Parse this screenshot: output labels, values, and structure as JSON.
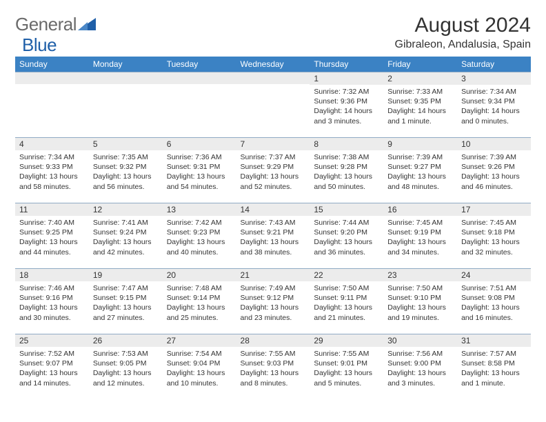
{
  "logo": {
    "part1": "General",
    "part2": "Blue"
  },
  "title": "August 2024",
  "location": "Gibraleon, Andalusia, Spain",
  "colors": {
    "header_bg": "#3b82c4",
    "header_text": "#ffffff",
    "daynum_bg": "#ececec",
    "border": "#8faac4",
    "logo_gray": "#6a6a6a",
    "logo_blue": "#1f5fa8"
  },
  "weekdays": [
    "Sunday",
    "Monday",
    "Tuesday",
    "Wednesday",
    "Thursday",
    "Friday",
    "Saturday"
  ],
  "grid": [
    [
      {
        "n": "",
        "sr": "",
        "ss": "",
        "dl": ""
      },
      {
        "n": "",
        "sr": "",
        "ss": "",
        "dl": ""
      },
      {
        "n": "",
        "sr": "",
        "ss": "",
        "dl": ""
      },
      {
        "n": "",
        "sr": "",
        "ss": "",
        "dl": ""
      },
      {
        "n": "1",
        "sr": "Sunrise: 7:32 AM",
        "ss": "Sunset: 9:36 PM",
        "dl": "Daylight: 14 hours and 3 minutes."
      },
      {
        "n": "2",
        "sr": "Sunrise: 7:33 AM",
        "ss": "Sunset: 9:35 PM",
        "dl": "Daylight: 14 hours and 1 minute."
      },
      {
        "n": "3",
        "sr": "Sunrise: 7:34 AM",
        "ss": "Sunset: 9:34 PM",
        "dl": "Daylight: 14 hours and 0 minutes."
      }
    ],
    [
      {
        "n": "4",
        "sr": "Sunrise: 7:34 AM",
        "ss": "Sunset: 9:33 PM",
        "dl": "Daylight: 13 hours and 58 minutes."
      },
      {
        "n": "5",
        "sr": "Sunrise: 7:35 AM",
        "ss": "Sunset: 9:32 PM",
        "dl": "Daylight: 13 hours and 56 minutes."
      },
      {
        "n": "6",
        "sr": "Sunrise: 7:36 AM",
        "ss": "Sunset: 9:31 PM",
        "dl": "Daylight: 13 hours and 54 minutes."
      },
      {
        "n": "7",
        "sr": "Sunrise: 7:37 AM",
        "ss": "Sunset: 9:29 PM",
        "dl": "Daylight: 13 hours and 52 minutes."
      },
      {
        "n": "8",
        "sr": "Sunrise: 7:38 AM",
        "ss": "Sunset: 9:28 PM",
        "dl": "Daylight: 13 hours and 50 minutes."
      },
      {
        "n": "9",
        "sr": "Sunrise: 7:39 AM",
        "ss": "Sunset: 9:27 PM",
        "dl": "Daylight: 13 hours and 48 minutes."
      },
      {
        "n": "10",
        "sr": "Sunrise: 7:39 AM",
        "ss": "Sunset: 9:26 PM",
        "dl": "Daylight: 13 hours and 46 minutes."
      }
    ],
    [
      {
        "n": "11",
        "sr": "Sunrise: 7:40 AM",
        "ss": "Sunset: 9:25 PM",
        "dl": "Daylight: 13 hours and 44 minutes."
      },
      {
        "n": "12",
        "sr": "Sunrise: 7:41 AM",
        "ss": "Sunset: 9:24 PM",
        "dl": "Daylight: 13 hours and 42 minutes."
      },
      {
        "n": "13",
        "sr": "Sunrise: 7:42 AM",
        "ss": "Sunset: 9:23 PM",
        "dl": "Daylight: 13 hours and 40 minutes."
      },
      {
        "n": "14",
        "sr": "Sunrise: 7:43 AM",
        "ss": "Sunset: 9:21 PM",
        "dl": "Daylight: 13 hours and 38 minutes."
      },
      {
        "n": "15",
        "sr": "Sunrise: 7:44 AM",
        "ss": "Sunset: 9:20 PM",
        "dl": "Daylight: 13 hours and 36 minutes."
      },
      {
        "n": "16",
        "sr": "Sunrise: 7:45 AM",
        "ss": "Sunset: 9:19 PM",
        "dl": "Daylight: 13 hours and 34 minutes."
      },
      {
        "n": "17",
        "sr": "Sunrise: 7:45 AM",
        "ss": "Sunset: 9:18 PM",
        "dl": "Daylight: 13 hours and 32 minutes."
      }
    ],
    [
      {
        "n": "18",
        "sr": "Sunrise: 7:46 AM",
        "ss": "Sunset: 9:16 PM",
        "dl": "Daylight: 13 hours and 30 minutes."
      },
      {
        "n": "19",
        "sr": "Sunrise: 7:47 AM",
        "ss": "Sunset: 9:15 PM",
        "dl": "Daylight: 13 hours and 27 minutes."
      },
      {
        "n": "20",
        "sr": "Sunrise: 7:48 AM",
        "ss": "Sunset: 9:14 PM",
        "dl": "Daylight: 13 hours and 25 minutes."
      },
      {
        "n": "21",
        "sr": "Sunrise: 7:49 AM",
        "ss": "Sunset: 9:12 PM",
        "dl": "Daylight: 13 hours and 23 minutes."
      },
      {
        "n": "22",
        "sr": "Sunrise: 7:50 AM",
        "ss": "Sunset: 9:11 PM",
        "dl": "Daylight: 13 hours and 21 minutes."
      },
      {
        "n": "23",
        "sr": "Sunrise: 7:50 AM",
        "ss": "Sunset: 9:10 PM",
        "dl": "Daylight: 13 hours and 19 minutes."
      },
      {
        "n": "24",
        "sr": "Sunrise: 7:51 AM",
        "ss": "Sunset: 9:08 PM",
        "dl": "Daylight: 13 hours and 16 minutes."
      }
    ],
    [
      {
        "n": "25",
        "sr": "Sunrise: 7:52 AM",
        "ss": "Sunset: 9:07 PM",
        "dl": "Daylight: 13 hours and 14 minutes."
      },
      {
        "n": "26",
        "sr": "Sunrise: 7:53 AM",
        "ss": "Sunset: 9:05 PM",
        "dl": "Daylight: 13 hours and 12 minutes."
      },
      {
        "n": "27",
        "sr": "Sunrise: 7:54 AM",
        "ss": "Sunset: 9:04 PM",
        "dl": "Daylight: 13 hours and 10 minutes."
      },
      {
        "n": "28",
        "sr": "Sunrise: 7:55 AM",
        "ss": "Sunset: 9:03 PM",
        "dl": "Daylight: 13 hours and 8 minutes."
      },
      {
        "n": "29",
        "sr": "Sunrise: 7:55 AM",
        "ss": "Sunset: 9:01 PM",
        "dl": "Daylight: 13 hours and 5 minutes."
      },
      {
        "n": "30",
        "sr": "Sunrise: 7:56 AM",
        "ss": "Sunset: 9:00 PM",
        "dl": "Daylight: 13 hours and 3 minutes."
      },
      {
        "n": "31",
        "sr": "Sunrise: 7:57 AM",
        "ss": "Sunset: 8:58 PM",
        "dl": "Daylight: 13 hours and 1 minute."
      }
    ]
  ]
}
